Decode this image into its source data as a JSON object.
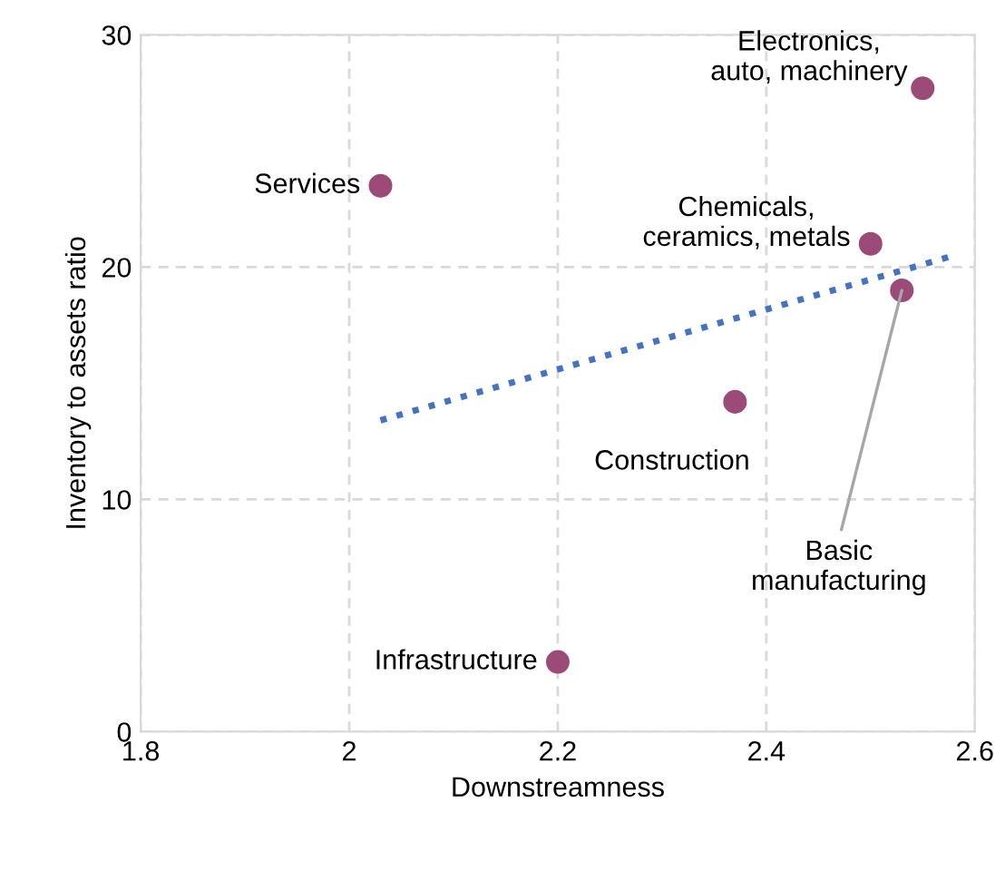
{
  "chart_data": {
    "type": "scatter",
    "xlabel": "Downstreamness",
    "ylabel": "Inventory to assets ratio",
    "xlim": [
      1.8,
      2.6
    ],
    "xticks": [
      1.8,
      2,
      2.2,
      2.4,
      2.6
    ],
    "ylim": [
      0,
      30
    ],
    "yticks": [
      0,
      10,
      20,
      30
    ],
    "grid": true,
    "legend": false,
    "series": [
      {
        "type": "scatter",
        "color": "#9c4a78",
        "marker": "circle",
        "x": [
          2.03,
          2.55,
          2.5,
          2.53,
          2.37,
          2.2
        ],
        "values": [
          23.5,
          27.7,
          21.0,
          19.0,
          14.2,
          3.0
        ]
      },
      {
        "type": "line",
        "color": "#4472c4",
        "line_style": "dotted",
        "marker": "none",
        "x": [
          2.03,
          2.58
        ],
        "values": [
          13.4,
          20.5
        ]
      }
    ],
    "annotations": [
      {
        "text": "Services",
        "x": 2.03,
        "y": 23.5
      },
      {
        "text": "Electronics,\nauto, machinery",
        "x": 2.55,
        "y": 27.7
      },
      {
        "text": "Chemicals,\nceramics, metals",
        "x": 2.5,
        "y": 21.0
      },
      {
        "text": "Basic\nmanufacturing",
        "x": 2.53,
        "y": 19.0
      },
      {
        "text": "Construction",
        "x": 2.37,
        "y": 14.2
      },
      {
        "text": "Infrastructure",
        "x": 2.2,
        "y": 3.0
      }
    ]
  }
}
